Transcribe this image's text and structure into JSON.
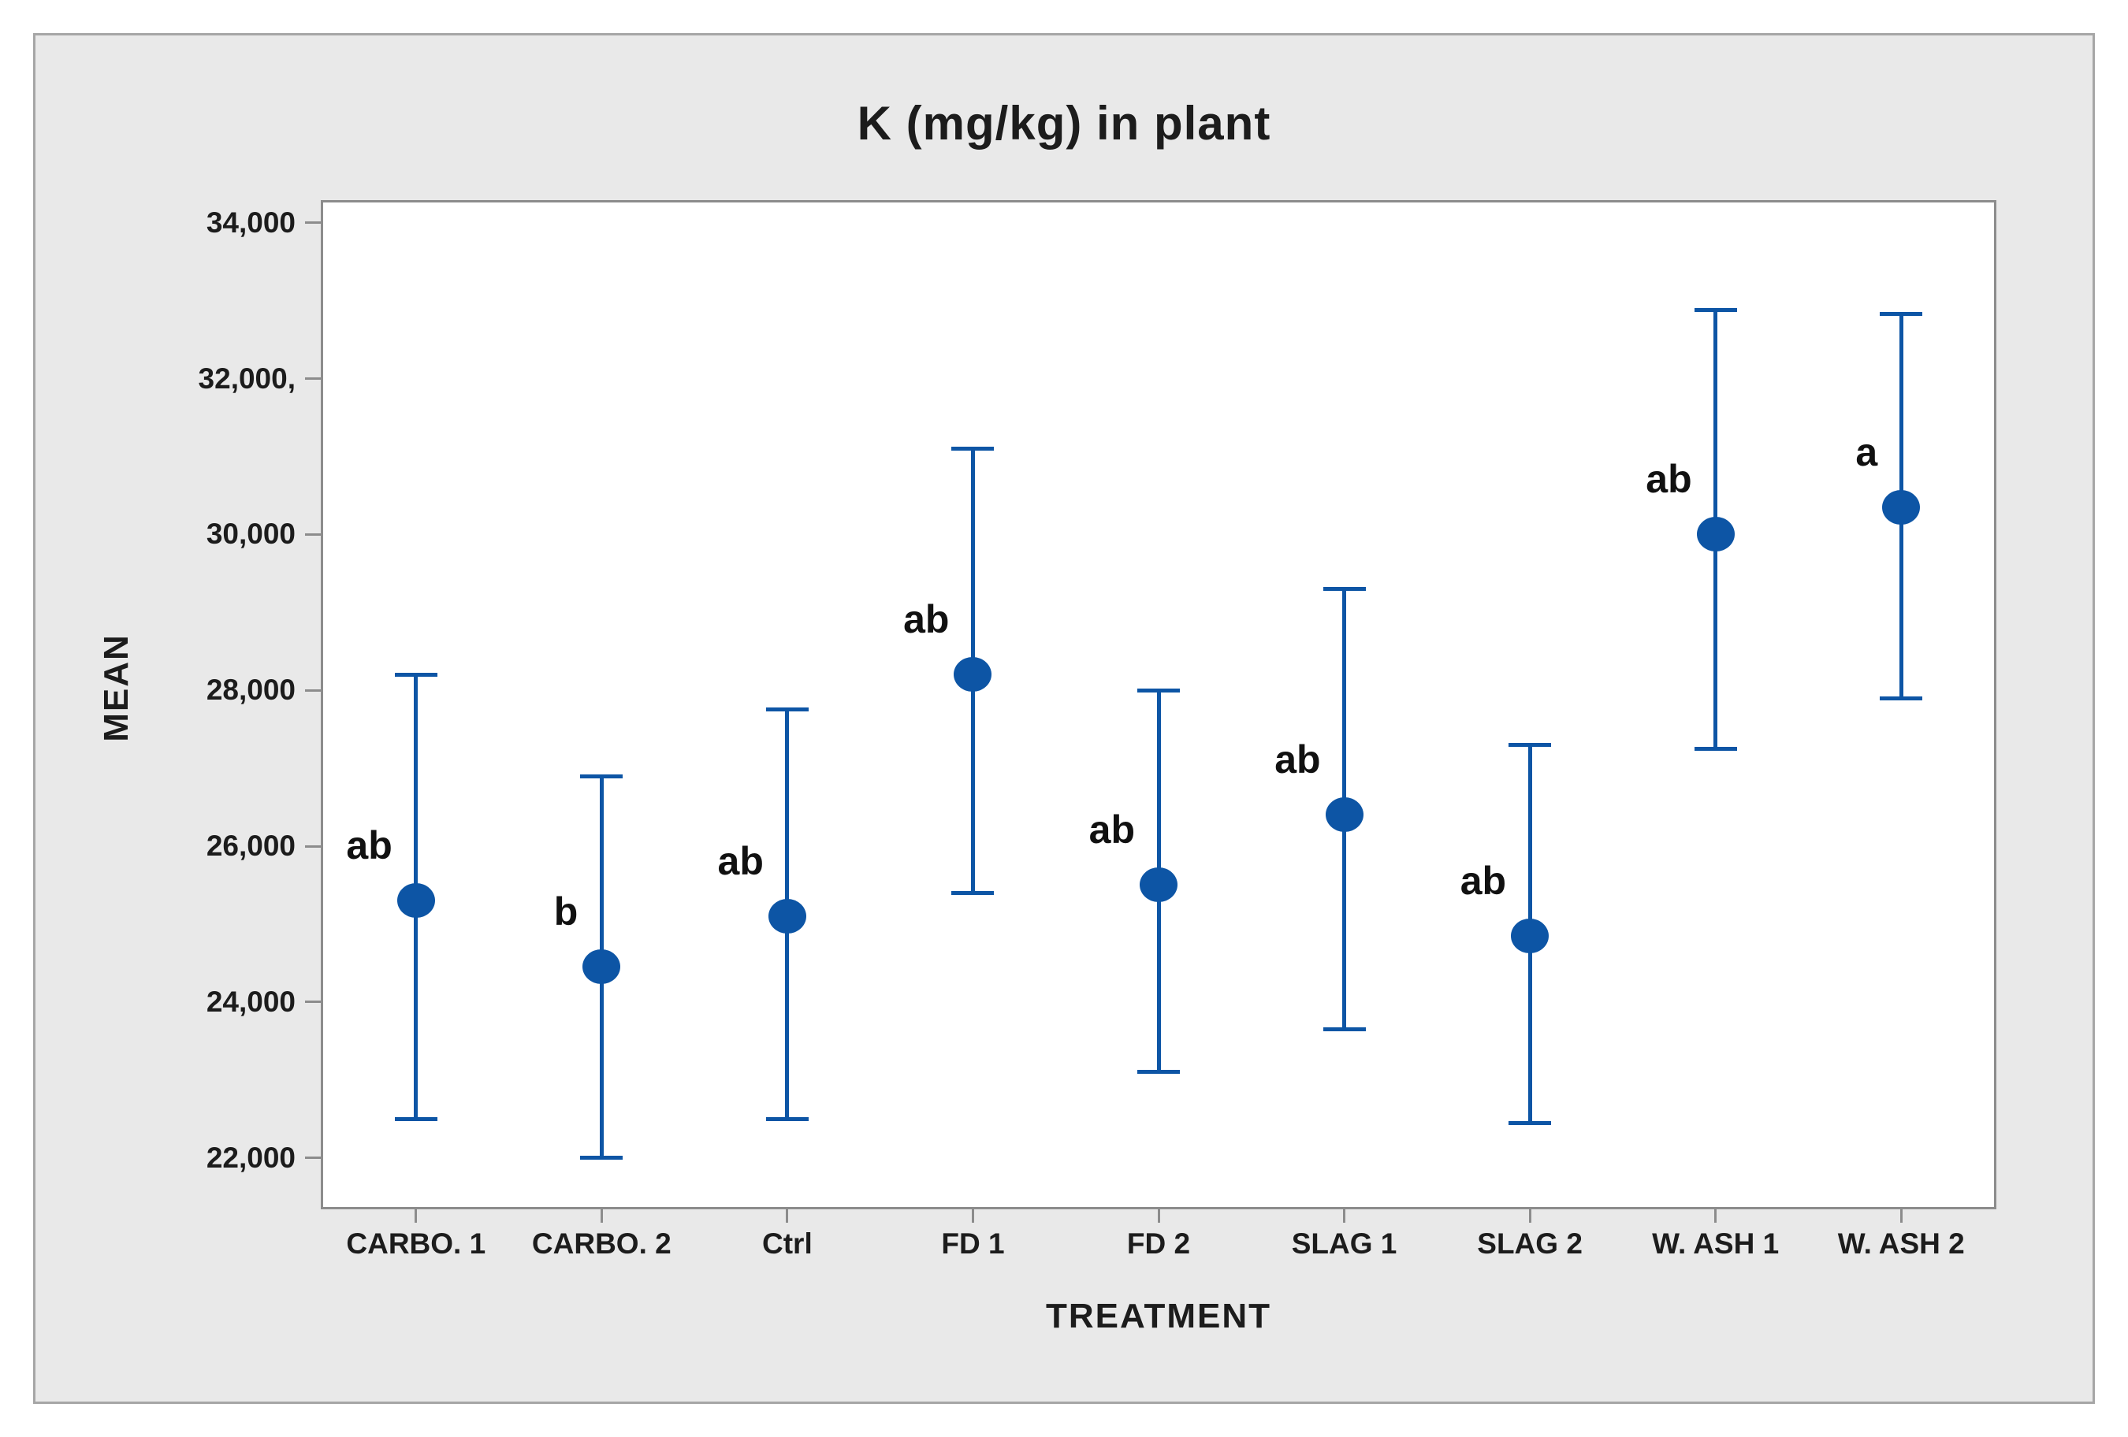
{
  "window": {
    "background": "#ffffff",
    "panel_background": "#e9e9e9",
    "panel_border_color": "#a6a6a6",
    "plot_background": "#ffffff",
    "frame_color": "#8c8c8c",
    "text_color": "#1c1c1c"
  },
  "chart_data": {
    "type": "scatter",
    "variant": "interval-plot-mean-ci",
    "title": "K (mg/kg) in plant",
    "xlabel": "TREATMENT",
    "ylabel": "MEAN",
    "grid": "off",
    "legend": "none",
    "marker_color": "#0d55a5",
    "categories": [
      "CARBO. 1",
      "CARBO. 2",
      "Ctrl",
      "FD 1",
      "FD 2",
      "SLAG 1",
      "SLAG 2",
      "W. ASH 1",
      "W. ASH 2"
    ],
    "points": [
      {
        "category": "CARBO. 1",
        "mean": 25300,
        "ci_low": 22500,
        "ci_high": 28200,
        "letter": "ab"
      },
      {
        "category": "CARBO. 2",
        "mean": 24450,
        "ci_low": 22000,
        "ci_high": 26900,
        "letter": "b"
      },
      {
        "category": "Ctrl",
        "mean": 25100,
        "ci_low": 22500,
        "ci_high": 27750,
        "letter": "ab"
      },
      {
        "category": "FD 1",
        "mean": 28200,
        "ci_low": 25400,
        "ci_high": 31100,
        "letter": "ab"
      },
      {
        "category": "FD 2",
        "mean": 25500,
        "ci_low": 23100,
        "ci_high": 28000,
        "letter": "ab"
      },
      {
        "category": "SLAG 1",
        "mean": 26400,
        "ci_low": 23650,
        "ci_high": 29300,
        "letter": "ab"
      },
      {
        "category": "SLAG 2",
        "mean": 24850,
        "ci_low": 22450,
        "ci_high": 27300,
        "letter": "ab"
      },
      {
        "category": "W. ASH 1",
        "mean": 30000,
        "ci_low": 27250,
        "ci_high": 32880,
        "letter": "ab"
      },
      {
        "category": "W. ASH 2",
        "mean": 30350,
        "ci_low": 27900,
        "ci_high": 32830,
        "letter": "a"
      }
    ],
    "y_ticks": {
      "values": [
        34000,
        32000,
        30000,
        28000,
        26000,
        24000,
        22000
      ],
      "labels": [
        "34,000",
        "32,000,",
        "30,000",
        "28,000",
        "26,000",
        "24,000",
        "22,000"
      ]
    },
    "ylim": [
      21370,
      34260
    ]
  }
}
